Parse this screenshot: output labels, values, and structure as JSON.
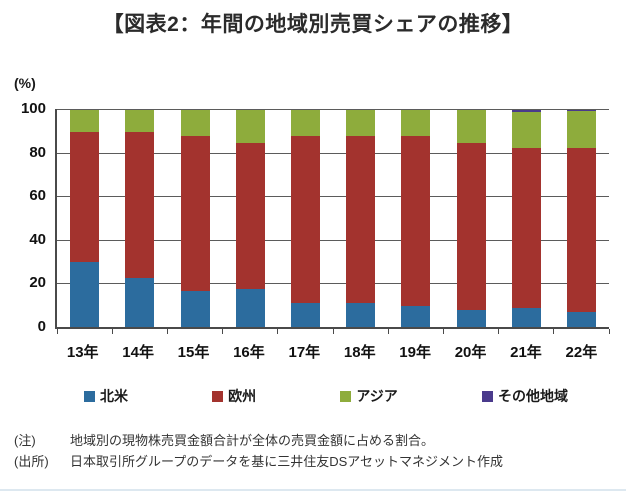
{
  "title": "【図表2：年間の地域別売買シェアの推移】",
  "chart_data": {
    "type": "bar",
    "stacked": true,
    "unit_label": "(%)",
    "categories": [
      "13年",
      "14年",
      "15年",
      "16年",
      "17年",
      "18年",
      "19年",
      "20年",
      "21年",
      "22年"
    ],
    "series": [
      {
        "name": "北米",
        "color": "#2C6C9E",
        "values": [
          30.0,
          22.5,
          16.5,
          17.5,
          11.0,
          11.0,
          9.5,
          8.0,
          8.5,
          7.0
        ]
      },
      {
        "name": "欧州",
        "color": "#A3332E",
        "values": [
          59.5,
          67.0,
          71.0,
          67.0,
          76.5,
          76.5,
          78.0,
          76.5,
          73.5,
          75.0
        ]
      },
      {
        "name": "アジア",
        "color": "#8EAC3C",
        "values": [
          10.0,
          10.0,
          12.0,
          15.0,
          12.0,
          12.0,
          12.0,
          15.0,
          16.5,
          17.0
        ]
      },
      {
        "name": "その他地域",
        "color": "#4A3A8C",
        "values": [
          0.5,
          0.5,
          0.5,
          0.5,
          0.5,
          0.5,
          0.5,
          0.5,
          1.5,
          1.0
        ]
      }
    ],
    "y_ticks": [
      0,
      20,
      40,
      60,
      80,
      100
    ],
    "ylim": [
      0,
      100
    ],
    "grid": true,
    "legend_position": "bottom"
  },
  "notes": [
    {
      "label": "(注)",
      "text": "地域別の現物株売買金額合計が全体の売買金額に占める割合。"
    },
    {
      "label": "(出所)",
      "text": "日本取引所グループのデータを基に三井住友DSアセットマネジメント作成"
    }
  ]
}
